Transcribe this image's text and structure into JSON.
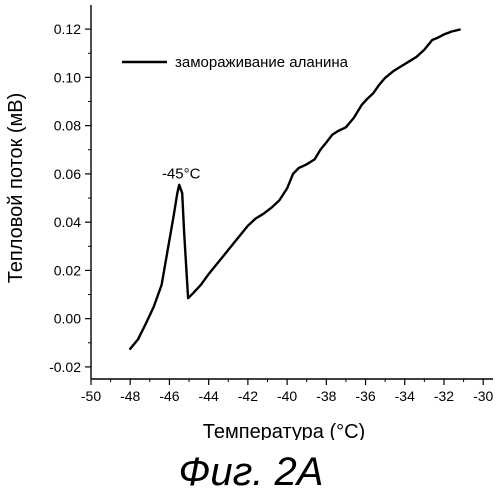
{
  "figure": {
    "caption": "Фиг. 2А"
  },
  "chart_data": {
    "type": "line",
    "title": "",
    "xlabel": "Температура (°C)",
    "ylabel": "Тепловой поток (мВ)",
    "xlim": [
      -50,
      -29.5
    ],
    "ylim": [
      -0.025,
      0.13
    ],
    "xticks": [
      -50,
      -48,
      -46,
      -44,
      -42,
      -40,
      -38,
      -36,
      -34,
      -32,
      -30
    ],
    "xtick_labels": [
      "-50",
      "-48",
      "-46",
      "-44",
      "-42",
      "-40",
      "-38",
      "-36",
      "-34",
      "-32",
      "-30"
    ],
    "yticks": [
      -0.02,
      0,
      0.02,
      0.04,
      0.06,
      0.08,
      0.1,
      0.12
    ],
    "ytick_labels": [
      "-0.02",
      "0.00",
      "0.02",
      "0.04",
      "0.06",
      "0.08",
      "0.10",
      "0.12"
    ],
    "grid": false,
    "legend_position": "top-left",
    "annotations": [
      {
        "text": "-45°C",
        "x": -45.4,
        "y": 0.058
      }
    ],
    "series": [
      {
        "name": "замораживание аланина",
        "color": "#000000",
        "x": [
          -48.0,
          -47.6,
          -47.2,
          -46.8,
          -46.4,
          -46.1,
          -45.8,
          -45.6,
          -45.5,
          -45.35,
          -45.25,
          -45.05,
          -44.8,
          -44.4,
          -44.0,
          -43.5,
          -43.0,
          -42.5,
          -42.0,
          -41.6,
          -41.2,
          -40.8,
          -40.4,
          -40.0,
          -39.7,
          -39.4,
          -39.2,
          -39.0,
          -38.6,
          -38.3,
          -38.0,
          -37.7,
          -37.4,
          -37.0,
          -36.6,
          -36.2,
          -35.9,
          -35.6,
          -35.3,
          -35.0,
          -34.6,
          -34.2,
          -33.8,
          -33.4,
          -33.0,
          -32.6,
          -32.3,
          -32.0,
          -31.6,
          -31.2
        ],
        "y": [
          -0.0125,
          -0.0085,
          -0.002,
          0.005,
          0.014,
          0.028,
          0.042,
          0.052,
          0.0555,
          0.052,
          0.036,
          0.0085,
          0.0105,
          0.014,
          0.0185,
          0.0235,
          0.0285,
          0.0335,
          0.0385,
          0.0415,
          0.0435,
          0.046,
          0.049,
          0.054,
          0.06,
          0.0625,
          0.0632,
          0.064,
          0.066,
          0.07,
          0.073,
          0.0762,
          0.0778,
          0.0793,
          0.0832,
          0.0885,
          0.0912,
          0.0935,
          0.097,
          0.0998,
          0.1025,
          0.1045,
          0.1065,
          0.1085,
          0.1115,
          0.1155,
          0.1165,
          0.1178,
          0.119,
          0.1198
        ]
      }
    ]
  }
}
